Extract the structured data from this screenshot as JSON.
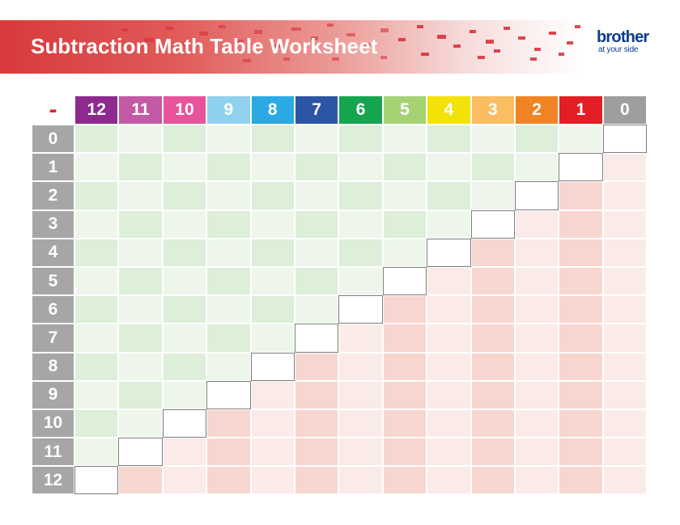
{
  "header": {
    "title": "Subtraction Math Table Worksheet",
    "banner_color": "#d8393c"
  },
  "logo": {
    "word": "brother",
    "tagline": "at your side",
    "color": "#0b3c8f"
  },
  "table": {
    "operator": "-",
    "operator_color": "#e1252c",
    "columns": [
      {
        "label": "12",
        "color": "#8e2a8f"
      },
      {
        "label": "11",
        "color": "#c25aa6"
      },
      {
        "label": "10",
        "color": "#e8549b"
      },
      {
        "label": "9",
        "color": "#8fd1ee"
      },
      {
        "label": "8",
        "color": "#2aa9e3"
      },
      {
        "label": "7",
        "color": "#2d55a5"
      },
      {
        "label": "6",
        "color": "#15a550"
      },
      {
        "label": "5",
        "color": "#a6d273"
      },
      {
        "label": "4",
        "color": "#f2e20a"
      },
      {
        "label": "3",
        "color": "#fbbd61"
      },
      {
        "label": "2",
        "color": "#f08323"
      },
      {
        "label": "1",
        "color": "#e21f25"
      },
      {
        "label": "0",
        "color": "#9e9e9e"
      }
    ],
    "rows": [
      "0",
      "1",
      "2",
      "3",
      "4",
      "5",
      "6",
      "7",
      "8",
      "9",
      "10",
      "11",
      "12"
    ],
    "row_header_color": "#a6a6a6",
    "cell_colors": {
      "green_light": "#eef6ec",
      "green_dark": "#ddeed9",
      "red_light": "#faebe8",
      "red_dark": "#f7d6cf",
      "diagonal": "#ffffff"
    }
  }
}
